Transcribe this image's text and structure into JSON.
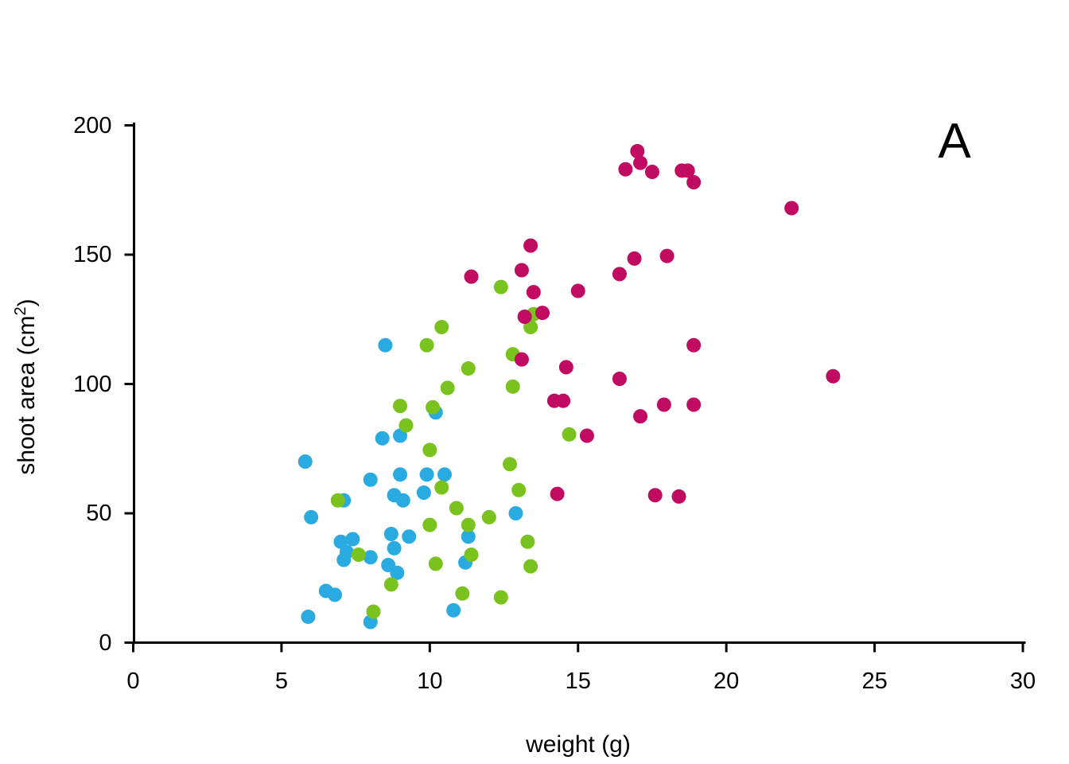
{
  "figure": {
    "background": "#FFFFFF",
    "axis_color": "#000000",
    "text_color": "#000000"
  },
  "chart_data": {
    "type": "scatter",
    "title": "",
    "annotation": "A",
    "xlabel": "weight (g)",
    "ylabel": "shoot area (cm2)",
    "ylabel_parts": {
      "prefix": "shoot area (cm",
      "sup": "2",
      "suffix": ")"
    },
    "xlim": [
      0,
      30
    ],
    "ylim": [
      0,
      200
    ],
    "x_ticks": [
      0,
      5,
      10,
      15,
      20,
      25,
      30
    ],
    "y_ticks": [
      0,
      50,
      100,
      150,
      200
    ],
    "grid": false,
    "legend_position": "none",
    "marker": "circle",
    "marker_radius_px": 9,
    "series": [
      {
        "name": "blue-group",
        "color": "#29ABE2",
        "points": [
          [
            5.8,
            70
          ],
          [
            5.9,
            10
          ],
          [
            6.0,
            48.5
          ],
          [
            6.5,
            20
          ],
          [
            6.8,
            18.5
          ],
          [
            7.0,
            39
          ],
          [
            7.1,
            55
          ],
          [
            7.1,
            32
          ],
          [
            7.2,
            35
          ],
          [
            7.4,
            40
          ],
          [
            8.0,
            63
          ],
          [
            8.0,
            33
          ],
          [
            8.0,
            8
          ],
          [
            8.4,
            79
          ],
          [
            8.5,
            115
          ],
          [
            8.6,
            30
          ],
          [
            8.7,
            42
          ],
          [
            8.8,
            57
          ],
          [
            8.8,
            36.5
          ],
          [
            8.9,
            27
          ],
          [
            9.0,
            80
          ],
          [
            9.0,
            65
          ],
          [
            9.1,
            55
          ],
          [
            9.3,
            41
          ],
          [
            9.8,
            58
          ],
          [
            9.9,
            65
          ],
          [
            10.2,
            89
          ],
          [
            10.5,
            65
          ],
          [
            10.8,
            12.5
          ],
          [
            11.2,
            31
          ],
          [
            11.3,
            41
          ],
          [
            12.9,
            50
          ]
        ]
      },
      {
        "name": "green-group",
        "color": "#7AC31E",
        "points": [
          [
            6.9,
            55
          ],
          [
            7.6,
            34
          ],
          [
            8.1,
            12
          ],
          [
            8.7,
            22.5
          ],
          [
            9.0,
            91.5
          ],
          [
            9.2,
            84
          ],
          [
            9.9,
            115
          ],
          [
            10.0,
            74.5
          ],
          [
            10.0,
            45.5
          ],
          [
            10.1,
            91
          ],
          [
            10.2,
            30.5
          ],
          [
            10.4,
            122
          ],
          [
            10.4,
            60
          ],
          [
            10.6,
            98.5
          ],
          [
            10.9,
            52
          ],
          [
            11.1,
            19
          ],
          [
            11.3,
            106
          ],
          [
            11.3,
            45.5
          ],
          [
            11.4,
            34
          ],
          [
            12.0,
            48.5
          ],
          [
            12.4,
            137.5
          ],
          [
            12.4,
            17.5
          ],
          [
            12.7,
            69
          ],
          [
            12.8,
            111.5
          ],
          [
            12.8,
            99
          ],
          [
            13.0,
            59
          ],
          [
            13.3,
            39
          ],
          [
            13.4,
            122
          ],
          [
            13.4,
            29.5
          ],
          [
            13.5,
            127
          ],
          [
            14.7,
            80.5
          ]
        ]
      },
      {
        "name": "magenta-group",
        "color": "#C10A62",
        "points": [
          [
            11.4,
            141.5
          ],
          [
            13.1,
            144
          ],
          [
            13.1,
            109.5
          ],
          [
            13.2,
            126
          ],
          [
            13.4,
            153.5
          ],
          [
            13.5,
            135.5
          ],
          [
            13.8,
            127.5
          ],
          [
            14.2,
            93.5
          ],
          [
            14.3,
            57.5
          ],
          [
            14.5,
            93.5
          ],
          [
            14.6,
            106.5
          ],
          [
            15.0,
            136
          ],
          [
            15.3,
            80
          ],
          [
            16.4,
            142.5
          ],
          [
            16.4,
            102
          ],
          [
            16.6,
            183
          ],
          [
            16.9,
            148.5
          ],
          [
            17.0,
            190
          ],
          [
            17.1,
            185.5
          ],
          [
            17.1,
            87.5
          ],
          [
            17.5,
            182
          ],
          [
            17.6,
            57
          ],
          [
            17.9,
            92
          ],
          [
            18.0,
            149.5
          ],
          [
            18.4,
            56.5
          ],
          [
            18.5,
            182.5
          ],
          [
            18.7,
            182.5
          ],
          [
            18.9,
            178
          ],
          [
            18.9,
            115
          ],
          [
            18.9,
            92
          ],
          [
            22.2,
            168
          ],
          [
            23.6,
            103
          ]
        ]
      }
    ]
  }
}
